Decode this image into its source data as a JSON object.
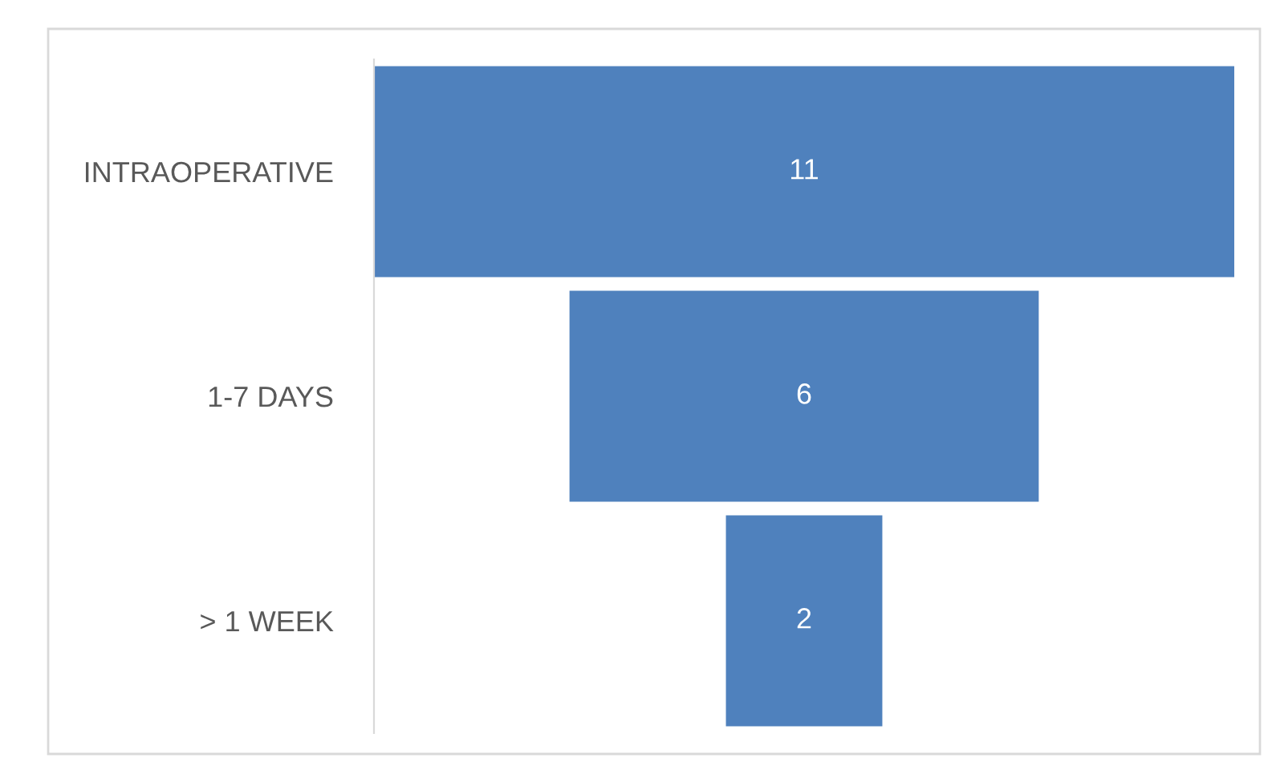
{
  "chart_data": {
    "type": "other",
    "categories": [
      "INTRAOPERATIVE",
      "1-7 DAYS",
      "> 1 WEEK"
    ],
    "values": [
      11,
      6,
      2
    ],
    "color": "#4f81bd",
    "data_labels": true
  }
}
